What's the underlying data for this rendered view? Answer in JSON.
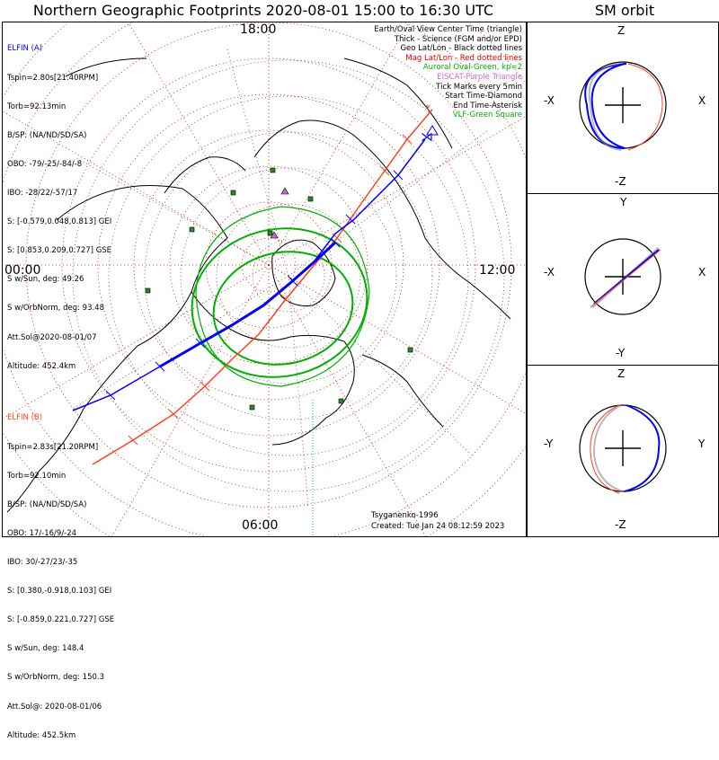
{
  "title": "Northern Geographic Footprints 2020-08-01 15:00 to 16:30 UTC",
  "sm_title": "SM orbit",
  "time_labels": {
    "top": "18:00",
    "right": "12:00",
    "bottom": "06:00",
    "left": "00:00"
  },
  "elfin_a": {
    "name": "ELFIN (A)",
    "color": "#0000ff",
    "lines": [
      "Tspin=2.80s[21.40RPM]",
      "Torb=92.13min",
      "B/SP: (NA/ND/SD/SA)",
      "OBO: -79/-25/-84/-8",
      "IBO: -28/22/-57/17",
      "S: [-0.579,0.048,0.813] GEI",
      "S: [0.853,0.209,0.727] GSE",
      "S w/Sun, deg: 49.26",
      "S w/OrbNorm, deg: 93.48",
      "Att.Sol@2020-08-01/07",
      "Altitude: 452.4km"
    ]
  },
  "elfin_b": {
    "name": "ELFIN (B)",
    "color": "#ff4020",
    "lines": [
      "Tspin=2.83s[21.20RPM]",
      "Torb=92.10min",
      "B/SP: (NA/ND/SD/SA)",
      "OBO: 17/-16/9/-24",
      "IBO: 30/-27/23/-35",
      "S: [0.380,-0.918,0.103] GEI",
      "S: [-0.859,0.221,0.727] GSE",
      "S w/Sun, deg: 148.4",
      "S w/OrbNorm, deg: 150.3",
      "Att.Sol@: 2020-08-01/06",
      "Altitude: 452.5km"
    ]
  },
  "legend": [
    {
      "text": "Earth/Oval View Center Time (triangle)",
      "color": "#000000"
    },
    {
      "text": "Thick - Science (FGM and/or EPD)",
      "color": "#000000"
    },
    {
      "text": "Geo Lat/Lon - Black dotted lines",
      "color": "#000000"
    },
    {
      "text": "Mag Lat/Lon - Red dotted lines",
      "color": "#e00000"
    },
    {
      "text": "Auroral Oval-Green, kp=2",
      "color": "#00b000"
    },
    {
      "text": "EISCAT-Purple Triangle",
      "color": "#cc66cc"
    },
    {
      "text": "Tick Marks every 5min",
      "color": "#000000"
    },
    {
      "text": "Start Time-Diamond",
      "color": "#000000"
    },
    {
      "text": "End Time-Asterisk",
      "color": "#000000"
    },
    {
      "text": "VLF-Green Square",
      "color": "#00b000"
    }
  ],
  "footer": {
    "model": "Tsyganenko-1996",
    "created": "Created: Tue Jan 24 08:12:59 2023"
  },
  "sm_panels": [
    {
      "top": "Z",
      "bottom": "-Z",
      "left": "-X",
      "right": "X"
    },
    {
      "top": "Y",
      "bottom": "-Y",
      "left": "-X",
      "right": "X"
    },
    {
      "top": "Z",
      "bottom": "-Z",
      "left": "-Y",
      "right": "Y"
    }
  ],
  "colors": {
    "orbit_a": "#0000ff",
    "orbit_b": "#ff4020",
    "oval": "#00b000",
    "grid_mag": "#e00000"
  }
}
